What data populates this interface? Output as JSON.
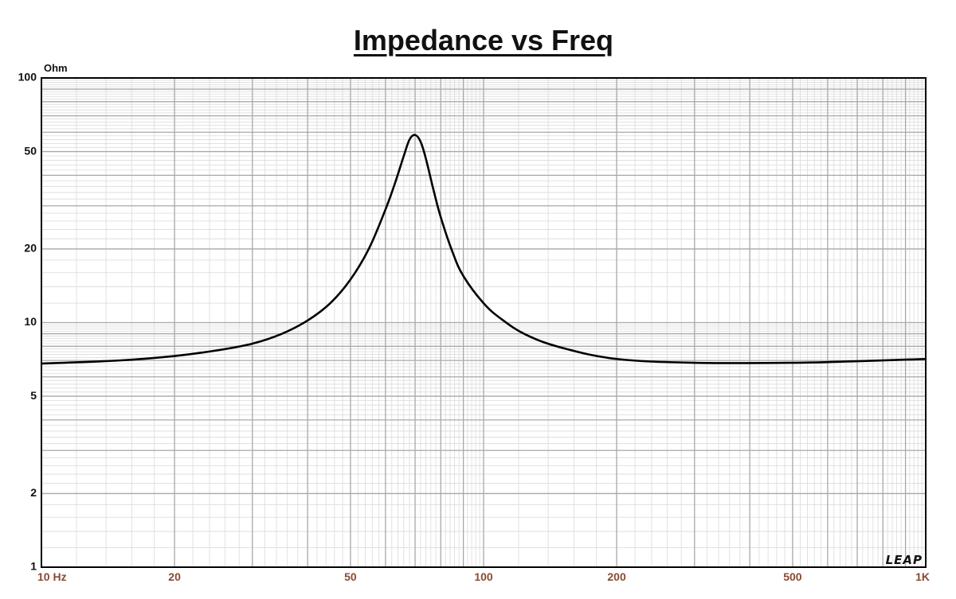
{
  "chart_data": {
    "type": "line",
    "title": "Impedance vs Freq",
    "ylabel": "Ohm",
    "xlabel": "",
    "x_scale": "log",
    "y_scale": "log",
    "xlim": [
      10,
      1000
    ],
    "ylim": [
      1,
      100
    ],
    "x_ticks": [
      {
        "value": 10,
        "label": "10  Hz"
      },
      {
        "value": 20,
        "label": "20"
      },
      {
        "value": 50,
        "label": "50"
      },
      {
        "value": 100,
        "label": "100"
      },
      {
        "value": 200,
        "label": "200"
      },
      {
        "value": 500,
        "label": "500"
      },
      {
        "value": 1000,
        "label": "1K"
      }
    ],
    "y_ticks": [
      {
        "value": 1,
        "label": "1"
      },
      {
        "value": 2,
        "label": "2"
      },
      {
        "value": 5,
        "label": "5"
      },
      {
        "value": 10,
        "label": "10"
      },
      {
        "value": 20,
        "label": "20"
      },
      {
        "value": 50,
        "label": "50"
      },
      {
        "value": 100,
        "label": "100"
      }
    ],
    "grid": true,
    "brand": "LEAP",
    "series": [
      {
        "color": "#000000",
        "x": [
          10,
          15,
          20,
          25,
          30,
          35,
          40,
          45,
          50,
          55,
          60,
          63,
          66,
          68,
          70,
          72,
          74,
          77,
          80,
          85,
          90,
          100,
          110,
          125,
          150,
          200,
          300,
          500,
          700,
          1000
        ],
        "y": [
          6.8,
          7.0,
          7.3,
          7.7,
          8.2,
          9.0,
          10.2,
          12.0,
          15.0,
          20.0,
          29.0,
          37.0,
          48.0,
          56.0,
          58.5,
          55.0,
          47.0,
          35.0,
          27.0,
          19.5,
          15.5,
          12.0,
          10.3,
          8.9,
          7.9,
          7.1,
          6.85,
          6.85,
          6.95,
          7.1
        ]
      }
    ]
  }
}
